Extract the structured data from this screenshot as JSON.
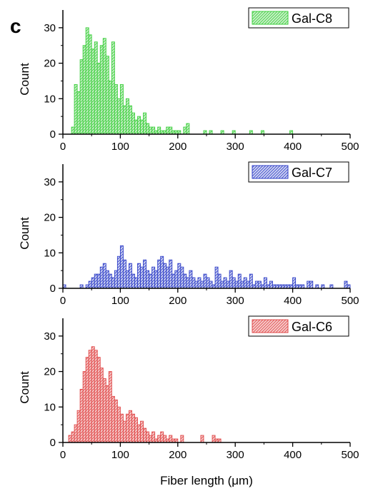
{
  "figure": {
    "panel_letter": "c",
    "xlabel": "Fiber length (μm)"
  },
  "chart_data": [
    {
      "type": "bar",
      "series": [
        {
          "name": "Gal-C8",
          "color": "#3ecf3e",
          "fill": "#c8f0c8"
        }
      ],
      "ylabel": "Count",
      "xlim": [
        0,
        500
      ],
      "ylim": [
        0,
        35
      ],
      "xticks": [
        0,
        100,
        200,
        300,
        400,
        500
      ],
      "yticks": [
        0,
        10,
        20,
        30
      ],
      "bin_width": 5,
      "legend_position": "top-right",
      "bins": [
        [
          15,
          2
        ],
        [
          20,
          14
        ],
        [
          25,
          12
        ],
        [
          30,
          21
        ],
        [
          35,
          25
        ],
        [
          40,
          30
        ],
        [
          45,
          28
        ],
        [
          50,
          24
        ],
        [
          55,
          26
        ],
        [
          60,
          20
        ],
        [
          65,
          25
        ],
        [
          70,
          27
        ],
        [
          75,
          22
        ],
        [
          80,
          15
        ],
        [
          85,
          26
        ],
        [
          90,
          14
        ],
        [
          95,
          10
        ],
        [
          100,
          14
        ],
        [
          105,
          8
        ],
        [
          110,
          10
        ],
        [
          115,
          8
        ],
        [
          120,
          6
        ],
        [
          125,
          4
        ],
        [
          130,
          5
        ],
        [
          135,
          4
        ],
        [
          140,
          6
        ],
        [
          145,
          3
        ],
        [
          150,
          2
        ],
        [
          155,
          2
        ],
        [
          160,
          1
        ],
        [
          165,
          2
        ],
        [
          170,
          1
        ],
        [
          175,
          1
        ],
        [
          180,
          2
        ],
        [
          185,
          2
        ],
        [
          190,
          1
        ],
        [
          195,
          1
        ],
        [
          200,
          1
        ],
        [
          210,
          2
        ],
        [
          215,
          3
        ],
        [
          245,
          1
        ],
        [
          255,
          1
        ],
        [
          275,
          1
        ],
        [
          295,
          1
        ],
        [
          325,
          1
        ],
        [
          345,
          1
        ],
        [
          395,
          1
        ]
      ]
    },
    {
      "type": "bar",
      "series": [
        {
          "name": "Gal-C7",
          "color": "#3040c8",
          "fill": "#d0d4f2"
        }
      ],
      "ylabel": "Count",
      "xlim": [
        0,
        500
      ],
      "ylim": [
        0,
        35
      ],
      "xticks": [
        0,
        100,
        200,
        300,
        400,
        500
      ],
      "yticks": [
        0,
        10,
        20,
        30
      ],
      "bin_width": 5,
      "legend_position": "top-right",
      "bins": [
        [
          0,
          1
        ],
        [
          30,
          1
        ],
        [
          40,
          1
        ],
        [
          45,
          2
        ],
        [
          50,
          3
        ],
        [
          55,
          4
        ],
        [
          60,
          4
        ],
        [
          65,
          6
        ],
        [
          70,
          7
        ],
        [
          75,
          5
        ],
        [
          80,
          4
        ],
        [
          85,
          3
        ],
        [
          90,
          5
        ],
        [
          95,
          9
        ],
        [
          100,
          12
        ],
        [
          105,
          8
        ],
        [
          110,
          5
        ],
        [
          115,
          7
        ],
        [
          120,
          4
        ],
        [
          125,
          3
        ],
        [
          130,
          7
        ],
        [
          135,
          6
        ],
        [
          140,
          8
        ],
        [
          145,
          5
        ],
        [
          150,
          4
        ],
        [
          155,
          6
        ],
        [
          160,
          5
        ],
        [
          165,
          8
        ],
        [
          170,
          9
        ],
        [
          175,
          7
        ],
        [
          180,
          6
        ],
        [
          185,
          8
        ],
        [
          190,
          4
        ],
        [
          195,
          5
        ],
        [
          200,
          7
        ],
        [
          205,
          6
        ],
        [
          210,
          4
        ],
        [
          215,
          3
        ],
        [
          220,
          5
        ],
        [
          225,
          3
        ],
        [
          230,
          2
        ],
        [
          235,
          3
        ],
        [
          240,
          2
        ],
        [
          245,
          4
        ],
        [
          250,
          3
        ],
        [
          255,
          2
        ],
        [
          260,
          1
        ],
        [
          265,
          6
        ],
        [
          270,
          4
        ],
        [
          275,
          2
        ],
        [
          280,
          3
        ],
        [
          285,
          2
        ],
        [
          290,
          5
        ],
        [
          295,
          3
        ],
        [
          300,
          2
        ],
        [
          305,
          4
        ],
        [
          310,
          2
        ],
        [
          315,
          3
        ],
        [
          320,
          2
        ],
        [
          325,
          4
        ],
        [
          330,
          1
        ],
        [
          335,
          2
        ],
        [
          340,
          2
        ],
        [
          345,
          1
        ],
        [
          350,
          3
        ],
        [
          355,
          1
        ],
        [
          360,
          2
        ],
        [
          365,
          1
        ],
        [
          370,
          1
        ],
        [
          375,
          1
        ],
        [
          380,
          1
        ],
        [
          385,
          1
        ],
        [
          390,
          1
        ],
        [
          395,
          1
        ],
        [
          400,
          3
        ],
        [
          405,
          1
        ],
        [
          410,
          1
        ],
        [
          415,
          1
        ],
        [
          425,
          2
        ],
        [
          430,
          2
        ],
        [
          440,
          1
        ],
        [
          450,
          1
        ],
        [
          465,
          1
        ],
        [
          490,
          2
        ],
        [
          495,
          1
        ]
      ]
    },
    {
      "type": "bar",
      "series": [
        {
          "name": "Gal-C6",
          "color": "#e04848",
          "fill": "#f6cccc"
        }
      ],
      "ylabel": "Count",
      "xlim": [
        0,
        500
      ],
      "ylim": [
        0,
        35
      ],
      "xticks": [
        0,
        100,
        200,
        300,
        400,
        500
      ],
      "yticks": [
        0,
        10,
        20,
        30
      ],
      "bin_width": 5,
      "legend_position": "top-right",
      "bins": [
        [
          10,
          2
        ],
        [
          15,
          3
        ],
        [
          20,
          5
        ],
        [
          25,
          9
        ],
        [
          30,
          15
        ],
        [
          35,
          20
        ],
        [
          40,
          24
        ],
        [
          45,
          26
        ],
        [
          50,
          27
        ],
        [
          55,
          26
        ],
        [
          60,
          24
        ],
        [
          65,
          21
        ],
        [
          70,
          18
        ],
        [
          75,
          16
        ],
        [
          80,
          20
        ],
        [
          85,
          13
        ],
        [
          90,
          12
        ],
        [
          95,
          10
        ],
        [
          100,
          8
        ],
        [
          105,
          6
        ],
        [
          110,
          8
        ],
        [
          115,
          9
        ],
        [
          120,
          8
        ],
        [
          125,
          7
        ],
        [
          130,
          5
        ],
        [
          135,
          6
        ],
        [
          140,
          4
        ],
        [
          145,
          3
        ],
        [
          150,
          2
        ],
        [
          155,
          3
        ],
        [
          160,
          1
        ],
        [
          165,
          2
        ],
        [
          170,
          3
        ],
        [
          175,
          2
        ],
        [
          180,
          1
        ],
        [
          185,
          2
        ],
        [
          190,
          1
        ],
        [
          195,
          1
        ],
        [
          205,
          2
        ],
        [
          240,
          2
        ],
        [
          260,
          2
        ],
        [
          265,
          1
        ],
        [
          270,
          1
        ]
      ]
    }
  ]
}
